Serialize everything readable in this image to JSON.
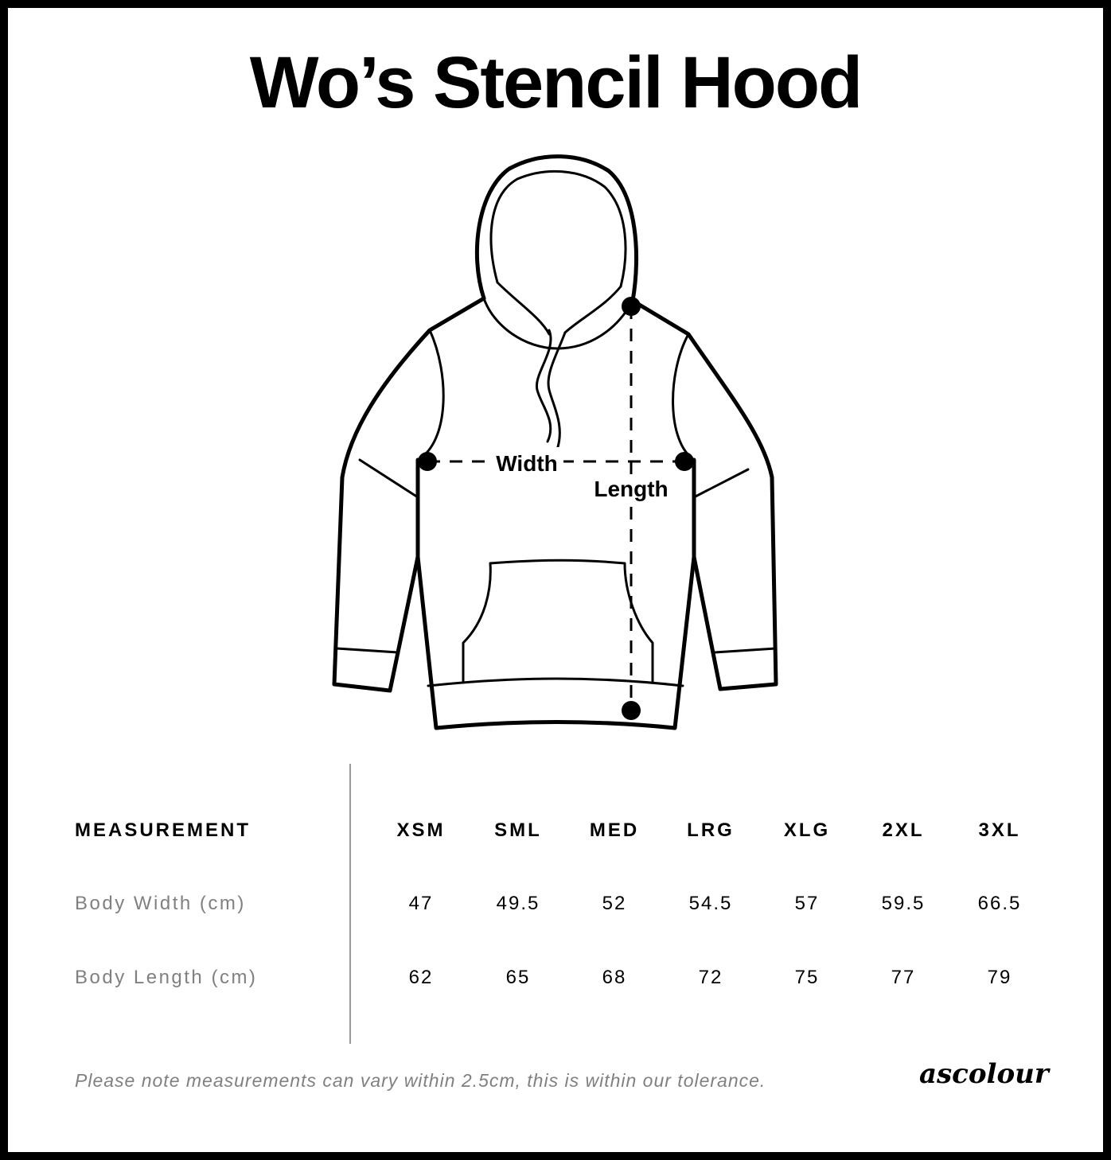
{
  "title": "Wo’s Stencil Hood",
  "diagram": {
    "width_label": "Width",
    "length_label": "Length"
  },
  "table": {
    "header": "MEASUREMENT",
    "sizes": [
      "XSM",
      "SML",
      "MED",
      "LRG",
      "XLG",
      "2XL",
      "3XL"
    ],
    "rows": [
      {
        "label": "Body Width (cm)",
        "values": [
          "47",
          "49.5",
          "52",
          "54.5",
          "57",
          "59.5",
          "66.5"
        ]
      },
      {
        "label": "Body Length (cm)",
        "values": [
          "62",
          "65",
          "68",
          "72",
          "75",
          "77",
          "79"
        ]
      }
    ]
  },
  "footer": {
    "note": "Please note measurements can vary within 2.5cm, this is within our tolerance.",
    "logo": "ascolour"
  }
}
